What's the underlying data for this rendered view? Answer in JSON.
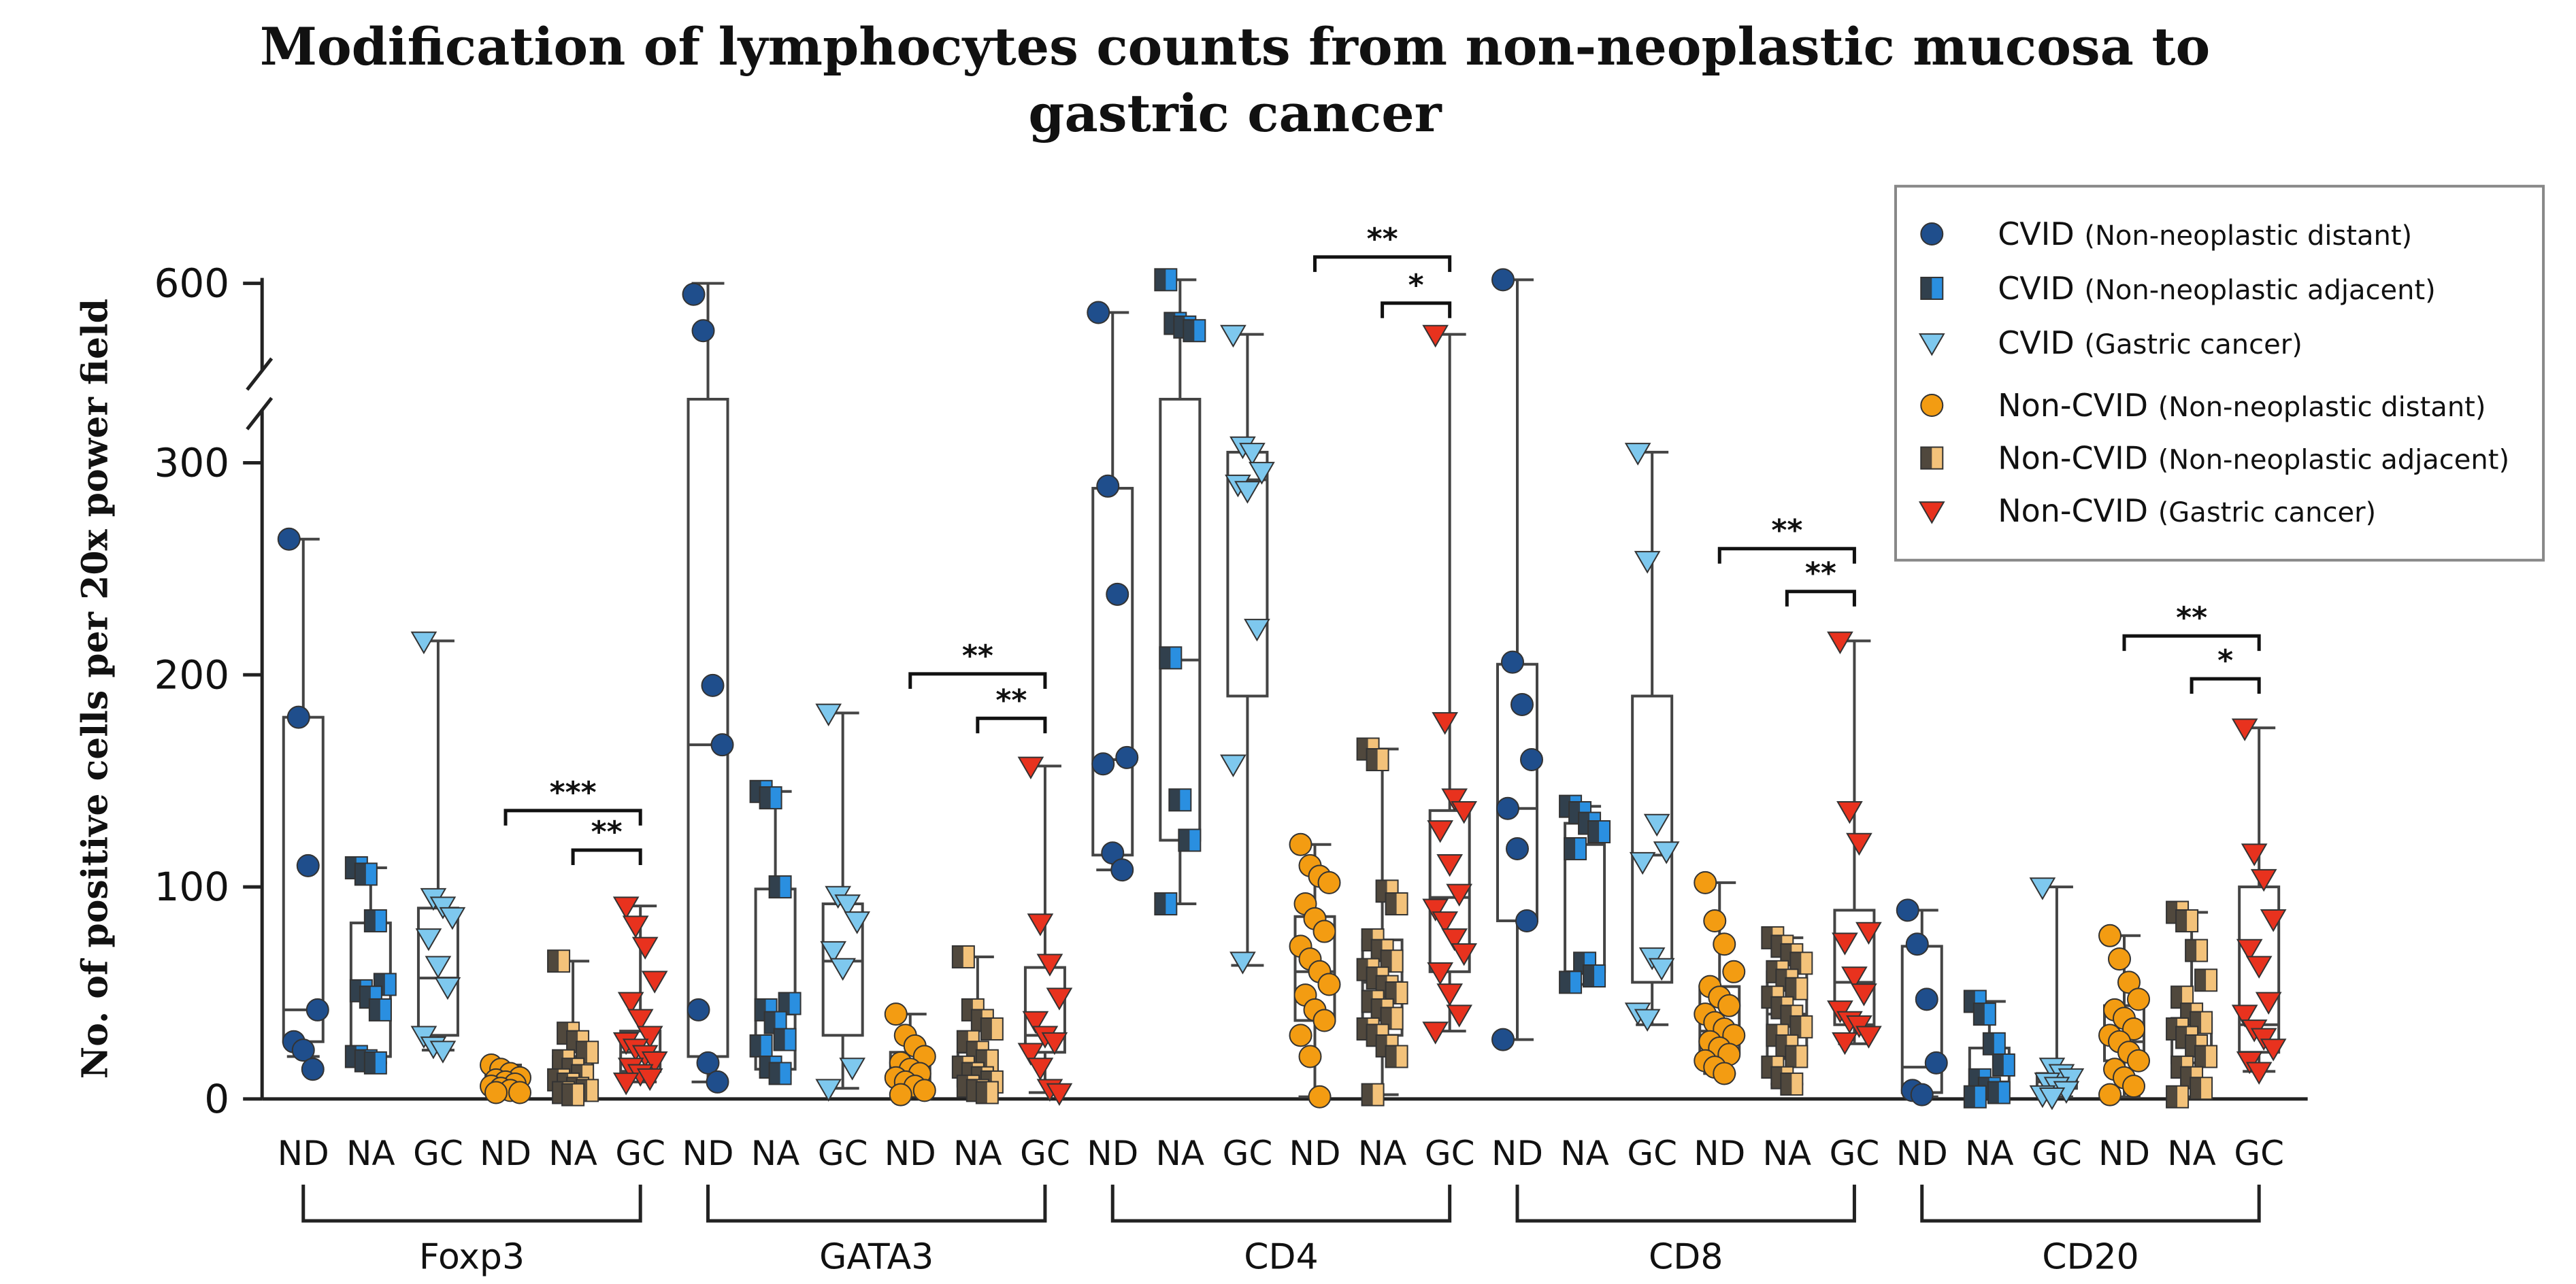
{
  "chart_data": {
    "type": "scatter",
    "title": "Modification of lymphocytes counts from non-neoplastic mucosa to gastric cancer",
    "title_lines": [
      "Modification of lymphocytes counts from non-neoplastic mucosa to",
      "gastric cancer"
    ],
    "ylabel": "No. of positive cells per 20x power field",
    "yticks": [
      0,
      100,
      200,
      300,
      600
    ],
    "y_break": [
      330,
      480
    ],
    "ylim": [
      0,
      615
    ],
    "group_labels": [
      "ND",
      "NA",
      "GC"
    ],
    "legend": {
      "placement": "top-right",
      "entries": [
        {
          "main": "CVID",
          "detail": "(Non-neoplastic distant)",
          "marker": "circle",
          "fill": "#1f4e8c"
        },
        {
          "main": "CVID",
          "detail": "(Non-neoplastic adjacent)",
          "marker": "square",
          "fill": "#2a8fe0"
        },
        {
          "main": "CVID",
          "detail": "(Gastric cancer)",
          "marker": "triangle",
          "fill": "#7ec8ee"
        },
        {
          "main": "Non-CVID",
          "detail": "(Non-neoplastic distant)",
          "marker": "circle",
          "fill": "#f39c12"
        },
        {
          "main": "Non-CVID",
          "detail": "(Non-neoplastic adjacent)",
          "marker": "square",
          "fill": "#f3c27a"
        },
        {
          "main": "Non-CVID",
          "detail": "(Gastric cancer)",
          "marker": "triangle",
          "fill": "#e8321e"
        }
      ]
    },
    "markers": [
      "Foxp3",
      "GATA3",
      "CD4",
      "CD8",
      "CD20"
    ],
    "series": [
      {
        "marker": "Foxp3",
        "group": "ND",
        "cohort": "CVID",
        "box": [
          20,
          27,
          42,
          180,
          264
        ],
        "points": [
          264,
          180,
          110,
          42,
          27,
          23,
          14
        ]
      },
      {
        "marker": "Foxp3",
        "group": "NA",
        "cohort": "CVID",
        "box": [
          17,
          20,
          50,
          83,
          109
        ],
        "points": [
          109,
          106,
          84,
          54,
          51,
          48,
          42,
          20,
          18,
          17
        ]
      },
      {
        "marker": "Foxp3",
        "group": "GC",
        "cohort": "CVID",
        "box": [
          23,
          30,
          57,
          90,
          216
        ],
        "points": [
          216,
          95,
          91,
          86,
          76,
          63,
          53,
          30,
          25,
          23
        ]
      },
      {
        "marker": "Foxp3",
        "group": "ND",
        "cohort": "Non-CVID",
        "box": [
          3,
          4,
          7,
          12,
          16
        ],
        "points": [
          16,
          14,
          12,
          10,
          9,
          8,
          7,
          6,
          5,
          4,
          3,
          3
        ]
      },
      {
        "marker": "Foxp3",
        "group": "NA",
        "cohort": "Non-CVID",
        "box": [
          2,
          5,
          10,
          20,
          65
        ],
        "points": [
          65,
          31,
          27,
          22,
          18,
          14,
          11,
          9,
          7,
          5,
          4,
          3,
          2
        ]
      },
      {
        "marker": "Foxp3",
        "group": "GC",
        "cohort": "Non-CVID",
        "box": [
          8,
          13,
          22,
          32,
          91
        ],
        "points": [
          91,
          82,
          72,
          56,
          46,
          38,
          30,
          27,
          24,
          21,
          18,
          15,
          12,
          10,
          8
        ]
      },
      {
        "marker": "GATA3",
        "group": "ND",
        "cohort": "CVID",
        "box": [
          8,
          20,
          167,
          330,
          600
        ],
        "points": [
          585,
          535,
          195,
          167,
          42,
          17,
          8
        ]
      },
      {
        "marker": "GATA3",
        "group": "NA",
        "cohort": "CVID",
        "box": [
          12,
          14,
          40,
          99,
          145
        ],
        "points": [
          145,
          142,
          100,
          45,
          42,
          36,
          28,
          25,
          15,
          12
        ]
      },
      {
        "marker": "GATA3",
        "group": "GC",
        "cohort": "CVID",
        "box": [
          5,
          30,
          65,
          92,
          182
        ],
        "points": [
          182,
          96,
          92,
          84,
          70,
          62,
          15,
          5
        ]
      },
      {
        "marker": "GATA3",
        "group": "ND",
        "cohort": "Non-CVID",
        "box": [
          2,
          6,
          12,
          22,
          40
        ],
        "points": [
          40,
          30,
          25,
          20,
          17,
          14,
          12,
          10,
          8,
          6,
          4,
          2
        ]
      },
      {
        "marker": "GATA3",
        "group": "NA",
        "cohort": "Non-CVID",
        "box": [
          3,
          6,
          15,
          22,
          67
        ],
        "points": [
          67,
          42,
          37,
          33,
          27,
          22,
          18,
          15,
          12,
          10,
          8,
          6,
          4,
          3
        ]
      },
      {
        "marker": "GATA3",
        "group": "GC",
        "cohort": "Non-CVID",
        "box": [
          3,
          22,
          30,
          62,
          157
        ],
        "points": [
          157,
          83,
          64,
          48,
          37,
          30,
          27,
          22,
          15,
          5,
          3
        ]
      },
      {
        "marker": "CD4",
        "group": "ND",
        "cohort": "CVID",
        "box": [
          108,
          115,
          160,
          288,
          560
        ],
        "points": [
          560,
          289,
          238,
          161,
          158,
          116,
          108
        ]
      },
      {
        "marker": "CD4",
        "group": "NA",
        "cohort": "CVID",
        "box": [
          92,
          122,
          207,
          330,
          605
        ],
        "points": [
          605,
          545,
          540,
          535,
          208,
          141,
          122,
          92
        ]
      },
      {
        "marker": "CD4",
        "group": "GC",
        "cohort": "CVID",
        "box": [
          63,
          190,
          292,
          305,
          530
        ],
        "points": [
          530,
          308,
          305,
          296,
          290,
          287,
          222,
          158,
          65
        ]
      },
      {
        "marker": "CD4",
        "group": "ND",
        "cohort": "Non-CVID",
        "box": [
          1,
          37,
          60,
          86,
          120
        ],
        "points": [
          120,
          110,
          105,
          102,
          92,
          85,
          79,
          72,
          66,
          60,
          54,
          49,
          42,
          37,
          30,
          20,
          1
        ]
      },
      {
        "marker": "CD4",
        "group": "NA",
        "cohort": "Non-CVID",
        "box": [
          2,
          30,
          55,
          75,
          165
        ],
        "points": [
          165,
          160,
          98,
          92,
          75,
          70,
          65,
          61,
          57,
          53,
          50,
          46,
          42,
          38,
          33,
          30,
          25,
          20,
          2
        ]
      },
      {
        "marker": "CD4",
        "group": "GC",
        "cohort": "Non-CVID",
        "box": [
          32,
          60,
          95,
          136,
          530
        ],
        "points": [
          530,
          178,
          142,
          136,
          127,
          111,
          97,
          90,
          84,
          76,
          69,
          60,
          50,
          40,
          32
        ]
      },
      {
        "marker": "CD8",
        "group": "ND",
        "cohort": "CVID",
        "box": [
          28,
          84,
          137,
          205,
          605
        ],
        "points": [
          605,
          206,
          186,
          160,
          137,
          118,
          84,
          28
        ]
      },
      {
        "marker": "CD8",
        "group": "NA",
        "cohort": "CVID",
        "box": [
          54,
          60,
          120,
          130,
          138
        ],
        "points": [
          138,
          135,
          130,
          126,
          118,
          64,
          58,
          55
        ]
      },
      {
        "marker": "CD8",
        "group": "GC",
        "cohort": "CVID",
        "box": [
          35,
          55,
          115,
          190,
          305
        ],
        "points": [
          305,
          254,
          130,
          117,
          112,
          67,
          62,
          41,
          38
        ]
      },
      {
        "marker": "CD8",
        "group": "ND",
        "cohort": "Non-CVID",
        "box": [
          12,
          22,
          32,
          53,
          102
        ],
        "points": [
          102,
          84,
          73,
          60,
          53,
          48,
          44,
          40,
          36,
          33,
          30,
          27,
          24,
          21,
          18,
          15,
          12
        ]
      },
      {
        "marker": "CD8",
        "group": "NA",
        "cohort": "Non-CVID",
        "box": [
          7,
          19,
          40,
          60,
          76
        ],
        "points": [
          76,
          72,
          68,
          64,
          60,
          56,
          52,
          48,
          43,
          39,
          34,
          30,
          25,
          20,
          15,
          10,
          7
        ]
      },
      {
        "marker": "CD8",
        "group": "GC",
        "cohort": "Non-CVID",
        "box": [
          26,
          35,
          55,
          89,
          216
        ],
        "points": [
          216,
          136,
          121,
          79,
          74,
          58,
          50,
          42,
          37,
          35,
          30,
          27
        ]
      },
      {
        "marker": "CD20",
        "group": "ND",
        "cohort": "CVID",
        "box": [
          1,
          3,
          15,
          72,
          89
        ],
        "points": [
          89,
          73,
          47,
          17,
          4,
          2
        ]
      },
      {
        "marker": "CD20",
        "group": "NA",
        "cohort": "CVID",
        "box": [
          1,
          3,
          8,
          24,
          46
        ],
        "points": [
          46,
          40,
          26,
          16,
          9,
          5,
          3,
          1
        ]
      },
      {
        "marker": "CD20",
        "group": "GC",
        "cohort": "CVID",
        "box": [
          1,
          5,
          8,
          12,
          100
        ],
        "points": [
          100,
          15,
          12,
          10,
          8,
          6,
          4,
          2,
          1
        ]
      },
      {
        "marker": "CD20",
        "group": "ND",
        "cohort": "Non-CVID",
        "box": [
          1,
          18,
          27,
          44,
          77
        ],
        "points": [
          77,
          66,
          55,
          47,
          42,
          38,
          33,
          30,
          27,
          22,
          18,
          14,
          10,
          6,
          2
        ]
      },
      {
        "marker": "CD20",
        "group": "NA",
        "cohort": "Non-CVID",
        "box": [
          1,
          17,
          32,
          38,
          88
        ],
        "points": [
          88,
          84,
          70,
          56,
          48,
          40,
          36,
          33,
          29,
          25,
          20,
          15,
          10,
          5,
          1
        ]
      },
      {
        "marker": "CD20",
        "group": "GC",
        "cohort": "Non-CVID",
        "box": [
          13,
          22,
          35,
          100,
          175
        ],
        "points": [
          175,
          116,
          104,
          85,
          71,
          63,
          46,
          40,
          33,
          29,
          24,
          18,
          13
        ]
      }
    ],
    "significance": [
      {
        "marker": "Foxp3",
        "from": "ND",
        "to": "GC",
        "label": "***"
      },
      {
        "marker": "Foxp3",
        "from": "NA",
        "to": "GC",
        "label": "**"
      },
      {
        "marker": "GATA3",
        "from": "ND",
        "to": "GC",
        "label": "**"
      },
      {
        "marker": "GATA3",
        "from": "NA",
        "to": "GC",
        "label": "**"
      },
      {
        "marker": "CD4",
        "from": "ND",
        "to": "GC",
        "label": "**"
      },
      {
        "marker": "CD4",
        "from": "NA",
        "to": "GC",
        "label": "*"
      },
      {
        "marker": "CD8",
        "from": "ND",
        "to": "GC",
        "label": "**"
      },
      {
        "marker": "CD8",
        "from": "NA",
        "to": "GC",
        "label": "**"
      },
      {
        "marker": "CD20",
        "from": "ND",
        "to": "GC",
        "label": "**"
      },
      {
        "marker": "CD20",
        "from": "NA",
        "to": "GC",
        "label": "*"
      }
    ]
  }
}
